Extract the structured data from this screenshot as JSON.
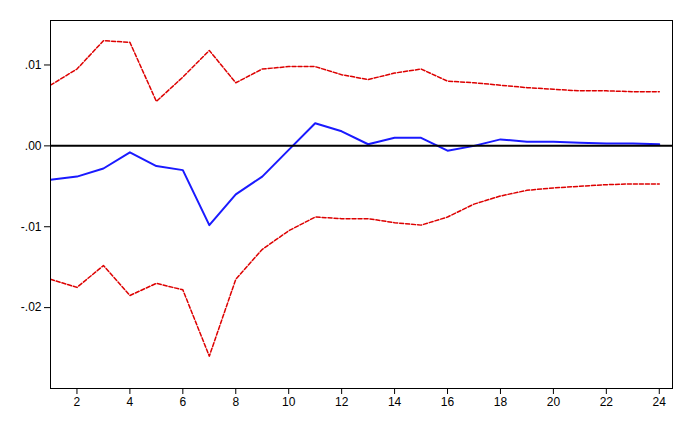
{
  "chart_data": {
    "type": "line",
    "x": [
      1,
      2,
      3,
      4,
      5,
      6,
      7,
      8,
      9,
      10,
      11,
      12,
      13,
      14,
      15,
      16,
      17,
      18,
      19,
      20,
      21,
      22,
      23,
      24
    ],
    "series": [
      {
        "color": "#dd0000",
        "line_style": "dashed",
        "values": [
          0.0075,
          0.0095,
          0.013,
          0.0128,
          0.0055,
          0.0085,
          0.0118,
          0.0078,
          0.0095,
          0.0098,
          0.0098,
          0.0088,
          0.0082,
          0.009,
          0.0095,
          0.008,
          0.0078,
          0.0075,
          0.0072,
          0.007,
          0.0068,
          0.0068,
          0.0067,
          0.0067
        ]
      },
      {
        "color": "#dd0000",
        "line_style": "dashed",
        "values": [
          -0.0165,
          -0.0175,
          -0.0148,
          -0.0185,
          -0.017,
          -0.0178,
          -0.026,
          -0.0165,
          -0.0128,
          -0.0105,
          -0.0088,
          -0.009,
          -0.009,
          -0.0095,
          -0.0098,
          -0.0088,
          -0.0072,
          -0.0062,
          -0.0055,
          -0.0052,
          -0.005,
          -0.0048,
          -0.0047,
          -0.0047
        ]
      },
      {
        "color": "#1a1aff",
        "line_style": "solid",
        "values": [
          -0.0042,
          -0.0038,
          -0.0028,
          -0.0008,
          -0.0025,
          -0.003,
          -0.0098,
          -0.006,
          -0.0038,
          -0.0005,
          0.0028,
          0.0018,
          0.0002,
          0.001,
          0.001,
          -0.0006,
          0.0,
          0.0008,
          0.0005,
          0.0005,
          0.0004,
          0.0003,
          0.0003,
          0.0002
        ]
      }
    ],
    "reference_lines": [
      {
        "value": 0,
        "color": "#000000"
      }
    ],
    "xlim": [
      1,
      24.5
    ],
    "xticks": [
      2,
      4,
      6,
      8,
      10,
      12,
      14,
      16,
      18,
      20,
      22,
      24
    ],
    "ylim": [
      -0.03,
      0.0155
    ],
    "yticks": [
      {
        "value": 0.01,
        "label": ".01"
      },
      {
        "value": 0.0,
        "label": ".00"
      },
      {
        "value": -0.01,
        "label": "-.01"
      },
      {
        "value": -0.02,
        "label": "-.02"
      }
    ],
    "grid": false
  }
}
